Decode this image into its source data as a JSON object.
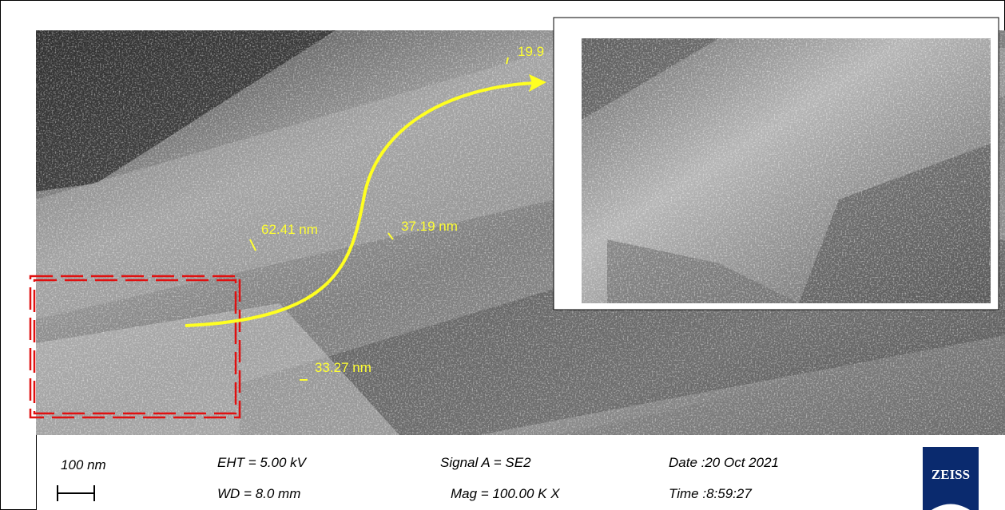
{
  "measurements": [
    {
      "label": "19.9"
    },
    {
      "label": "62.41 nm"
    },
    {
      "label": "37.19 nm"
    },
    {
      "label": "33.27 nm"
    }
  ],
  "scale_bar": "100 nm",
  "info": {
    "eht": "EHT =  5.00 kV",
    "wd": "WD =  8.0 mm",
    "signal": "Signal A = SE2",
    "mag": "Mag =  100.00 K X",
    "date": "Date :20 Oct 2021",
    "time": "Time :8:59:27"
  },
  "logo": "ZEISS"
}
